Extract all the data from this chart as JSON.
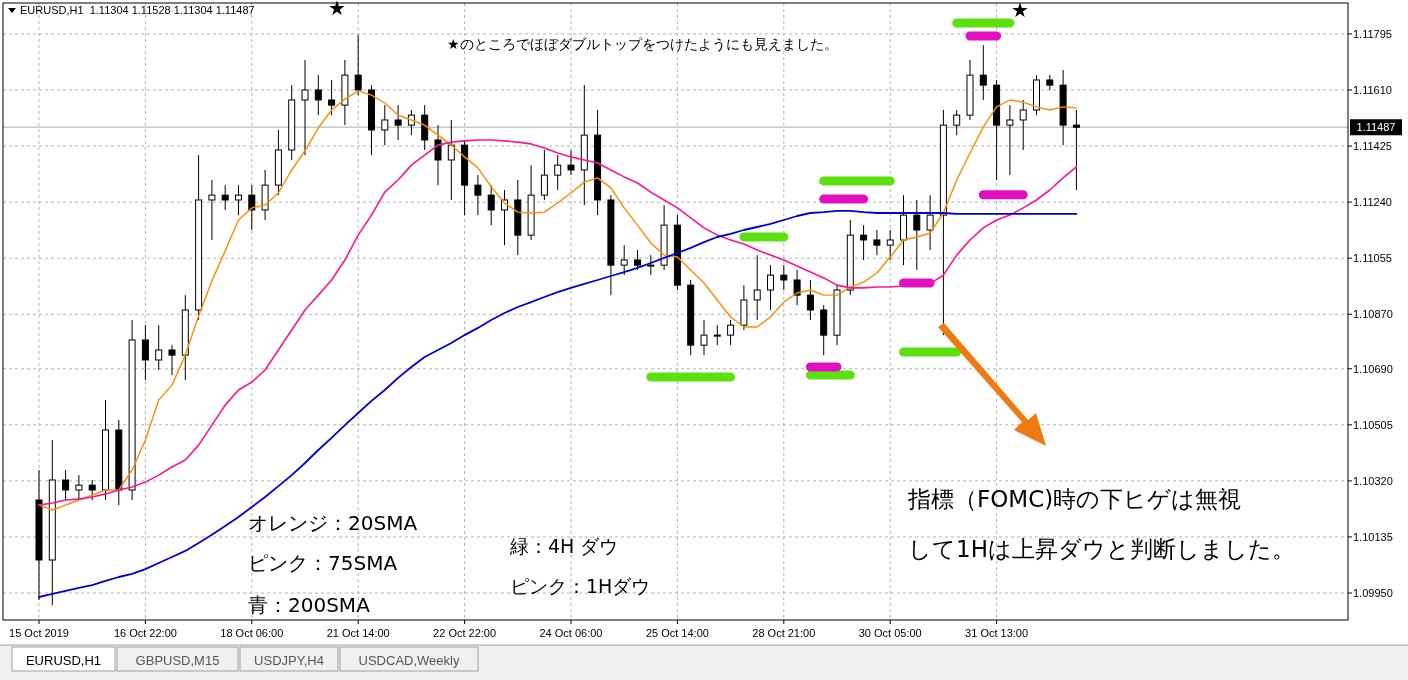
{
  "chart_data": {
    "type": "candlestick",
    "title": "EURUSD,H1  1.11304 1.11528 1.11304 1.11487",
    "categories": [
      "15 Oct 2019",
      null,
      null,
      null,
      null,
      null,
      null,
      null,
      "16 Oct 22:00",
      null,
      null,
      null,
      null,
      null,
      null,
      null,
      "18 Oct 06:00",
      null,
      null,
      null,
      null,
      null,
      null,
      null,
      "21 Oct 14:00",
      null,
      null,
      null,
      null,
      null,
      null,
      null,
      "22 Oct 22:00",
      null,
      null,
      null,
      null,
      null,
      null,
      null,
      "24 Oct 06:00",
      null,
      null,
      null,
      null,
      null,
      null,
      null,
      "25 Oct 14:00",
      null,
      null,
      null,
      null,
      null,
      null,
      null,
      "28 Oct 21:00",
      null,
      null,
      null,
      null,
      null,
      null,
      null,
      "30 Oct 05:00",
      null,
      null,
      null,
      null,
      null,
      null,
      null,
      "31 Oct 13:00",
      null,
      null,
      null,
      null,
      null,
      null
    ],
    "ohlc": [
      [
        1.10257,
        1.10356,
        1.09927,
        1.10059
      ],
      [
        1.10059,
        1.10455,
        1.0991,
        1.10323
      ],
      [
        1.10323,
        1.10356,
        1.10257,
        1.1029
      ],
      [
        1.1029,
        1.10339,
        1.10257,
        1.10306
      ],
      [
        1.10306,
        1.10323,
        1.10257,
        1.1029
      ],
      [
        1.1029,
        1.10587,
        1.10257,
        1.10488
      ],
      [
        1.10488,
        1.10521,
        1.1024,
        1.1029
      ],
      [
        1.1029,
        1.10851,
        1.10257,
        1.10785
      ],
      [
        1.10785,
        1.10834,
        1.10653,
        1.10719
      ],
      [
        1.10719,
        1.10834,
        1.10686,
        1.10752
      ],
      [
        1.10752,
        1.10768,
        1.10669,
        1.10735
      ],
      [
        1.10735,
        1.10933,
        1.10653,
        1.10884
      ],
      [
        1.10884,
        1.11395,
        1.10851,
        1.11247
      ],
      [
        1.11247,
        1.11313,
        1.11115,
        1.11263
      ],
      [
        1.11263,
        1.11296,
        1.11214,
        1.11247
      ],
      [
        1.11247,
        1.11296,
        1.11197,
        1.11263
      ],
      [
        1.11263,
        1.11296,
        1.11148,
        1.11214
      ],
      [
        1.11214,
        1.11346,
        1.11181,
        1.11296
      ],
      [
        1.11296,
        1.11478,
        1.11263,
        1.11412
      ],
      [
        1.11412,
        1.11626,
        1.11379,
        1.11577
      ],
      [
        1.11577,
        1.11709,
        1.11395,
        1.1161
      ],
      [
        1.1161,
        1.11659,
        1.11527,
        1.11577
      ],
      [
        1.11577,
        1.11643,
        1.11527,
        1.1156
      ],
      [
        1.1156,
        1.11709,
        1.11494,
        1.11659
      ],
      [
        1.11659,
        1.11791,
        1.11593,
        1.1161
      ],
      [
        1.1161,
        1.11626,
        1.11395,
        1.11478
      ],
      [
        1.11478,
        1.1156,
        1.11428,
        1.11511
      ],
      [
        1.11511,
        1.1156,
        1.11445,
        1.11494
      ],
      [
        1.11494,
        1.11544,
        1.11461,
        1.11527
      ],
      [
        1.11527,
        1.1156,
        1.11412,
        1.11445
      ],
      [
        1.11445,
        1.11494,
        1.11296,
        1.11379
      ],
      [
        1.11379,
        1.11511,
        1.11247,
        1.11428
      ],
      [
        1.11428,
        1.11445,
        1.11197,
        1.11296
      ],
      [
        1.11296,
        1.11329,
        1.11197,
        1.11263
      ],
      [
        1.11263,
        1.11296,
        1.11164,
        1.11214
      ],
      [
        1.11214,
        1.1128,
        1.11098,
        1.11247
      ],
      [
        1.11247,
        1.11313,
        1.11065,
        1.11131
      ],
      [
        1.11131,
        1.11362,
        1.11115,
        1.11263
      ],
      [
        1.11263,
        1.11412,
        1.11247,
        1.11329
      ],
      [
        1.11329,
        1.11395,
        1.1128,
        1.11362
      ],
      [
        1.11362,
        1.11412,
        1.11329,
        1.11346
      ],
      [
        1.11346,
        1.11626,
        1.1123,
        1.11461
      ],
      [
        1.11461,
        1.11544,
        1.11197,
        1.11247
      ],
      [
        1.11247,
        1.11263,
        1.10933,
        1.11032
      ],
      [
        1.11032,
        1.11098,
        1.10999,
        1.11049
      ],
      [
        1.11049,
        1.11082,
        1.11016,
        1.11032
      ],
      [
        1.11032,
        1.11065,
        1.10999,
        1.11032
      ],
      [
        1.11032,
        1.1123,
        1.11016,
        1.11164
      ],
      [
        1.11164,
        1.11197,
        1.1095,
        1.10966
      ],
      [
        1.10966,
        1.10983,
        1.10735,
        1.10768
      ],
      [
        1.10768,
        1.10851,
        1.10735,
        1.10801
      ],
      [
        1.10801,
        1.10834,
        1.10768,
        1.10801
      ],
      [
        1.10801,
        1.10851,
        1.10768,
        1.10834
      ],
      [
        1.10834,
        1.10966,
        1.10818,
        1.10917
      ],
      [
        1.10917,
        1.11065,
        1.10851,
        1.1095
      ],
      [
        1.1095,
        1.11032,
        1.10884,
        1.10999
      ],
      [
        1.10999,
        1.11032,
        1.1095,
        1.10983
      ],
      [
        1.10983,
        1.11016,
        1.109,
        1.10933
      ],
      [
        1.10933,
        1.10983,
        1.10851,
        1.10884
      ],
      [
        1.10884,
        1.109,
        1.10735,
        1.10801
      ],
      [
        1.10801,
        1.10966,
        1.10768,
        1.1095
      ],
      [
        1.1095,
        1.11181,
        1.10933,
        1.11131
      ],
      [
        1.11131,
        1.11164,
        1.11049,
        1.11115
      ],
      [
        1.11115,
        1.11148,
        1.11065,
        1.11098
      ],
      [
        1.11098,
        1.11148,
        1.11049,
        1.11115
      ],
      [
        1.11115,
        1.11263,
        1.11032,
        1.11197
      ],
      [
        1.11197,
        1.11247,
        1.11016,
        1.11148
      ],
      [
        1.11148,
        1.11263,
        1.11082,
        1.11197
      ],
      [
        1.11197,
        1.11544,
        1.10801,
        1.11494
      ],
      [
        1.11494,
        1.11544,
        1.11461,
        1.11527
      ],
      [
        1.11527,
        1.11709,
        1.11511,
        1.11659
      ],
      [
        1.11659,
        1.11758,
        1.11577,
        1.11626
      ],
      [
        1.11626,
        1.11643,
        1.11313,
        1.11494
      ],
      [
        1.11494,
        1.1156,
        1.11329,
        1.11511
      ],
      [
        1.11511,
        1.11577,
        1.11412,
        1.11544
      ],
      [
        1.11544,
        1.11659,
        1.11527,
        1.11643
      ],
      [
        1.11643,
        1.11659,
        1.1161,
        1.11626
      ],
      [
        1.11626,
        1.11676,
        1.11428,
        1.11494
      ],
      [
        1.11494,
        1.11544,
        1.1128,
        1.11487
      ]
    ],
    "series": [
      {
        "type": "line",
        "color": "#ff8c00",
        "values": [
          1.1024,
          1.10224,
          1.1024,
          1.10257,
          1.10273,
          1.1029,
          1.1029,
          1.10356,
          1.10455,
          1.10587,
          1.10636,
          1.10735,
          1.10864,
          1.1098,
          1.11079,
          1.11181,
          1.11221,
          1.1123,
          1.1127,
          1.11346,
          1.11409,
          1.11485,
          1.11544,
          1.1158,
          1.11607,
          1.11593,
          1.11567,
          1.11527,
          1.11511,
          1.11494,
          1.11461,
          1.11428,
          1.11389,
          1.11353,
          1.1129,
          1.11237,
          1.11207,
          1.11204,
          1.11207,
          1.11237,
          1.1127,
          1.11306,
          1.1132,
          1.11287,
          1.11221,
          1.11164,
          1.11105,
          1.11065,
          1.11059,
          1.11016,
          1.10973,
          1.10917,
          1.10861,
          1.10828,
          1.10828,
          1.10861,
          1.1091,
          1.1094,
          1.1095,
          1.10933,
          1.10933,
          1.1096,
          1.10976,
          1.11006,
          1.11059,
          1.11115,
          1.11125,
          1.11138,
          1.11204,
          1.11313,
          1.11402,
          1.11488,
          1.11554,
          1.11577,
          1.1157,
          1.11554,
          1.11544,
          1.11554,
          1.11551
        ]
      },
      {
        "type": "line",
        "color": "#ff1493",
        "values": [
          1.1024,
          1.10247,
          1.10257,
          1.1026,
          1.10267,
          1.10277,
          1.1029,
          1.103,
          1.10316,
          1.10339,
          1.10366,
          1.10389,
          1.10438,
          1.10504,
          1.1057,
          1.1062,
          1.10646,
          1.10686,
          1.10752,
          1.10818,
          1.10884,
          1.10933,
          1.10983,
          1.11049,
          1.11131,
          1.11197,
          1.11273,
          1.11313,
          1.11362,
          1.11395,
          1.11428,
          1.11438,
          1.11442,
          1.11445,
          1.11445,
          1.11442,
          1.11438,
          1.11432,
          1.11419,
          1.11402,
          1.11389,
          1.11379,
          1.11369,
          1.11346,
          1.11323,
          1.11303,
          1.11273,
          1.11247,
          1.11221,
          1.11188,
          1.11155,
          1.11131,
          1.11115,
          1.11102,
          1.11082,
          1.11065,
          1.11049,
          1.11029,
          1.11009,
          1.1099,
          1.10966,
          1.10957,
          1.10957,
          1.1096,
          1.1096,
          1.10963,
          1.1097,
          1.1097,
          1.10999,
          1.11065,
          1.11115,
          1.11155,
          1.11181,
          1.11197,
          1.11221,
          1.11247,
          1.1128,
          1.1132,
          1.11356
        ]
      },
      {
        "type": "line",
        "color": "#0000cd",
        "values": [
          1.09937,
          1.09947,
          1.09957,
          1.09967,
          1.09976,
          1.0999,
          1.10003,
          1.10013,
          1.10029,
          1.10049,
          1.10069,
          1.10089,
          1.10115,
          1.10142,
          1.10171,
          1.10201,
          1.10234,
          1.10267,
          1.10303,
          1.10339,
          1.10379,
          1.10422,
          1.10462,
          1.10504,
          1.10544,
          1.10584,
          1.1062,
          1.1066,
          1.10696,
          1.10729,
          1.10752,
          1.10775,
          1.10801,
          1.10825,
          1.10851,
          1.10874,
          1.10894,
          1.1091,
          1.10927,
          1.10943,
          1.10957,
          1.1097,
          1.10983,
          1.10996,
          1.11009,
          1.11023,
          1.11039,
          1.11056,
          1.11072,
          1.11089,
          1.11108,
          1.11125,
          1.11135,
          1.11148,
          1.11158,
          1.11168,
          1.11181,
          1.11194,
          1.11204,
          1.11207,
          1.11211,
          1.11211,
          1.11207,
          1.11204,
          1.11204,
          1.11204,
          1.11204,
          1.11204,
          1.11204,
          1.11201,
          1.11201,
          1.11201,
          1.11201,
          1.11201,
          1.11201,
          1.11201,
          1.11201,
          1.11201,
          1.11201
        ]
      },
      {
        "type": "line",
        "color": "#5ce010",
        "values": [
          null,
          null,
          null,
          null,
          null,
          null,
          null,
          null,
          null,
          null,
          null,
          null,
          null,
          null,
          null,
          null,
          null,
          null,
          null,
          null,
          null,
          null,
          null,
          null,
          null,
          null,
          null,
          null,
          null,
          null,
          null,
          null,
          null,
          null,
          null,
          null,
          null,
          null,
          null,
          null,
          null,
          null,
          null,
          null,
          null,
          null,
          1.10663,
          1.10663,
          1.10663,
          1.10663,
          1.10663,
          1.10663,
          1.10663,
          null,
          null,
          null,
          null,
          null,
          1.10669,
          1.10669,
          1.10669,
          1.10669,
          null,
          null,
          null,
          1.10745,
          1.10745,
          1.10745,
          1.10745,
          1.10745,
          null,
          null,
          null,
          null,
          null,
          null,
          null,
          null,
          null
        ]
      },
      {
        "type": "line",
        "color": "#5ce010",
        "values": [
          null,
          null,
          null,
          null,
          null,
          null,
          null,
          null,
          null,
          null,
          null,
          null,
          null,
          null,
          null,
          null,
          null,
          null,
          null,
          null,
          null,
          null,
          null,
          null,
          null,
          null,
          null,
          null,
          null,
          null,
          null,
          null,
          null,
          null,
          null,
          null,
          null,
          null,
          null,
          null,
          null,
          null,
          null,
          null,
          null,
          null,
          null,
          null,
          null,
          null,
          null,
          null,
          null,
          1.11125,
          1.11125,
          1.11125,
          1.11125,
          null,
          null,
          1.1131,
          1.1131,
          1.1131,
          1.1131,
          1.1131,
          1.1131,
          null,
          null,
          null,
          null,
          1.11831,
          1.11831,
          1.11831,
          1.11831,
          1.11831,
          null,
          null,
          null,
          null,
          null
        ]
      },
      {
        "type": "line",
        "color": "#e010c0",
        "values": [
          null,
          null,
          null,
          null,
          null,
          null,
          null,
          null,
          null,
          null,
          null,
          null,
          null,
          null,
          null,
          null,
          null,
          null,
          null,
          null,
          null,
          null,
          null,
          null,
          null,
          null,
          null,
          null,
          null,
          null,
          null,
          null,
          null,
          null,
          null,
          null,
          null,
          null,
          null,
          null,
          null,
          null,
          null,
          null,
          null,
          null,
          null,
          null,
          null,
          null,
          null,
          null,
          null,
          null,
          null,
          null,
          null,
          null,
          1.10696,
          1.10696,
          1.10696,
          null,
          null,
          null,
          null,
          1.10973,
          1.10973,
          1.10973,
          null,
          null,
          null,
          1.11264,
          1.11264,
          1.11264,
          1.11264,
          null,
          null,
          null,
          null
        ]
      },
      {
        "type": "line",
        "color": "#e010c0",
        "values": [
          null,
          null,
          null,
          null,
          null,
          null,
          null,
          null,
          null,
          null,
          null,
          null,
          null,
          null,
          null,
          null,
          null,
          null,
          null,
          null,
          null,
          null,
          null,
          null,
          null,
          null,
          null,
          null,
          null,
          null,
          null,
          null,
          null,
          null,
          null,
          null,
          null,
          null,
          null,
          null,
          null,
          null,
          null,
          null,
          null,
          null,
          null,
          null,
          null,
          null,
          null,
          null,
          null,
          null,
          null,
          null,
          null,
          null,
          null,
          1.1125,
          1.1125,
          1.1125,
          1.1125,
          null,
          null,
          null,
          null,
          null,
          null,
          null,
          1.11788,
          1.11788,
          1.11788,
          null,
          null,
          null,
          null,
          null,
          null
        ]
      }
    ],
    "ylim": [
      1.09861,
      1.11897
    ],
    "yticks": [
      {
        "value": 1.0995,
        "label": "1.09950"
      },
      {
        "value": 1.10135,
        "label": "1.10135"
      },
      {
        "value": 1.1032,
        "label": "1.10320"
      },
      {
        "value": 1.10505,
        "label": "1.10505"
      },
      {
        "value": 1.1069,
        "label": "1.10690"
      },
      {
        "value": 1.1087,
        "label": "1.10870"
      },
      {
        "value": 1.11055,
        "label": "1.11055"
      },
      {
        "value": 1.1124,
        "label": "1.11240"
      },
      {
        "value": 1.11425,
        "label": "1.11425"
      },
      {
        "value": 1.1161,
        "label": "1.11610"
      },
      {
        "value": 1.11795,
        "label": "1.11795"
      }
    ],
    "ref_lines": [
      {
        "axis": "y",
        "value": 1.11487,
        "label": "1.11487",
        "color": "#c8c8c8"
      }
    ],
    "grid": true,
    "annotations": [
      "★のところでほぼダブルトップをつけたようにも見えました。",
      "★",
      "★",
      "オレンジ：20SMA",
      "ピンク：75SMA",
      "青：200SMA",
      "緑：4H ダウ",
      "ピンク：1Hダウ",
      "指標（FOMC)時の下ヒゲは無視",
      "して1Hは上昇ダウと判断しました。",
      "EURUSD,H1",
      "GBPUSD,M15",
      "USDJPY,H4",
      "USDCAD,Weekly"
    ]
  }
}
